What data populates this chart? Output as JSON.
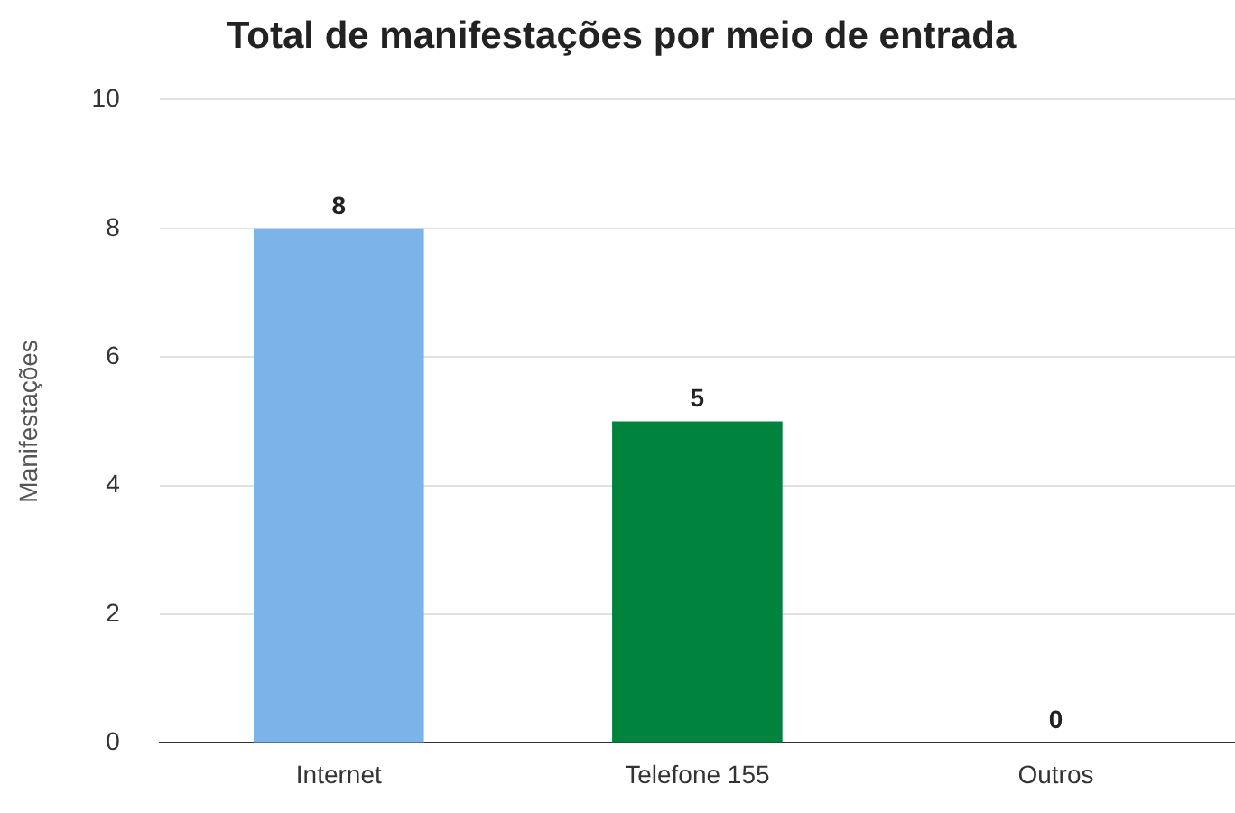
{
  "chart_data": {
    "type": "bar",
    "title": "Total de manifestações por meio de entrada",
    "ylabel": "Manifestações",
    "categories": [
      "Internet",
      "Telefone 155",
      "Outros"
    ],
    "values": [
      8,
      5,
      0
    ],
    "colors": [
      "#7cb4ea",
      "#00843d",
      "#9e9e9e"
    ],
    "ylim": [
      0,
      10
    ],
    "yticks": [
      0,
      2,
      4,
      6,
      8,
      10
    ],
    "grid": "y",
    "data_labels": true
  }
}
